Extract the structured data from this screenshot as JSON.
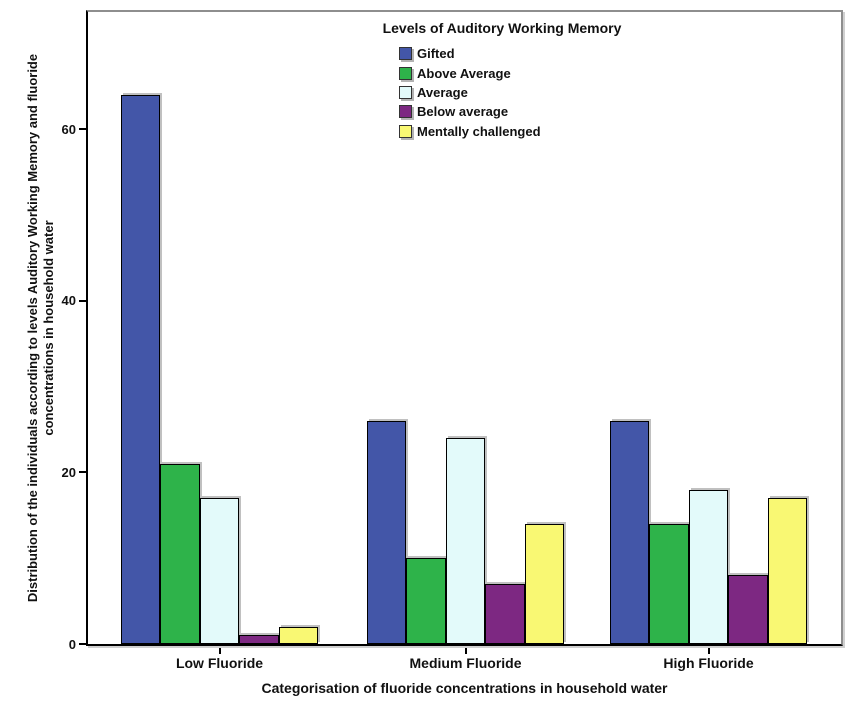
{
  "chart_data": {
    "type": "bar",
    "title": "",
    "legend_title": "Levels of Auditory Working Memory",
    "legend_position": "top-center-inside",
    "categories": [
      "Low Fluoride",
      "Medium Fluoride",
      "High Fluoride"
    ],
    "series": [
      {
        "name": "Gifted",
        "color": "#4356A8",
        "values": [
          64,
          26,
          26
        ]
      },
      {
        "name": "Above Average",
        "color": "#2EB34A",
        "values": [
          21,
          10,
          14
        ]
      },
      {
        "name": "Average",
        "color": "#E3FAFA",
        "values": [
          17,
          24,
          18
        ]
      },
      {
        "name": "Below average",
        "color": "#7D2882",
        "values": [
          1,
          7,
          8
        ]
      },
      {
        "name": "Mentally challenged",
        "color": "#F9F873",
        "values": [
          2,
          14,
          17
        ]
      }
    ],
    "xlabel": "Categorisation of fluoride concentrations in household water",
    "ylabel": "Distribution of the individuals according to levels Auditory Working Memory and fluoride concentrations in household water",
    "ylabel_line1": "Distribution of the individuals according to levels Auditory Working Memory and fluoride",
    "ylabel_line2": "concentrations in household water",
    "yticks": [
      0,
      20,
      40,
      60
    ],
    "ylim": [
      0,
      73.7
    ],
    "grid": false,
    "axis_color": "#000000",
    "frame_color": "#8e8e8e",
    "bar_border_color": "#000000"
  }
}
